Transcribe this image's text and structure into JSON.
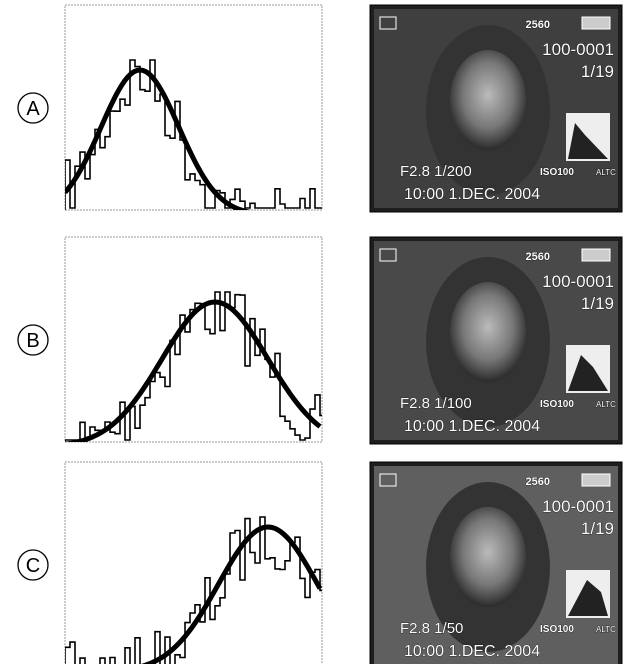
{
  "rows": [
    {
      "label": "A",
      "screen": {
        "size": "2560",
        "folder": "100-0001",
        "count": "1/19",
        "exposure": "F2.8 1/200",
        "iso": "ISO100",
        "wb": "ALTC",
        "datetime": "10:00 1.DEC. 2004"
      }
    },
    {
      "label": "B",
      "screen": {
        "size": "2560",
        "folder": "100-0001",
        "count": "1/19",
        "exposure": "F2.8 1/100",
        "iso": "ISO100",
        "wb": "ALTC",
        "datetime": "10:00 1.DEC. 2004"
      }
    },
    {
      "label": "C",
      "screen": {
        "size": "2560",
        "folder": "100-0001",
        "count": "1/19",
        "exposure": "F2.8 1/50",
        "iso": "ISO100",
        "wb": "ALTC",
        "datetime": "10:00 1.DEC. 2004"
      }
    }
  ]
}
